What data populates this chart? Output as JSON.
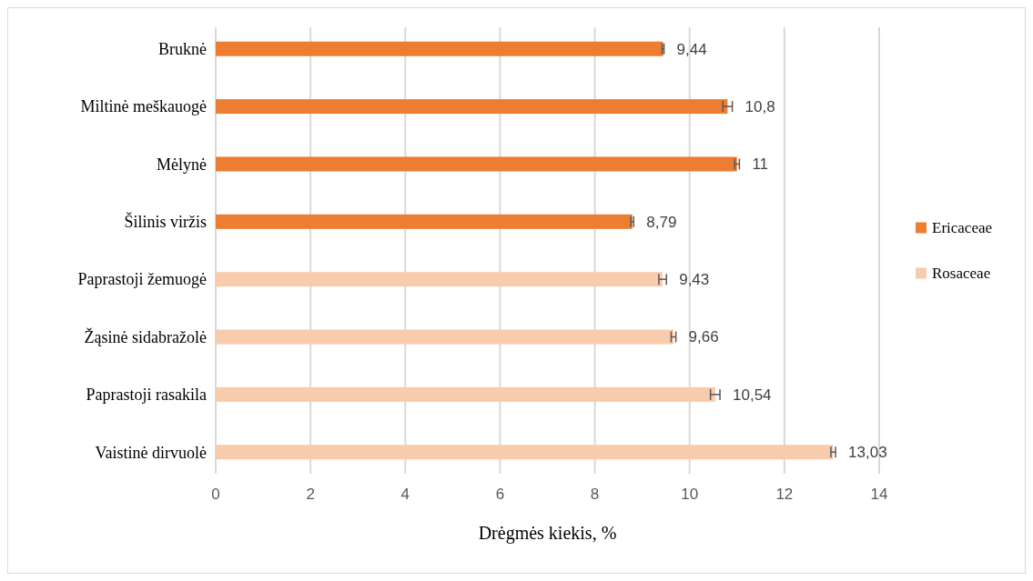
{
  "chart_data": {
    "type": "bar",
    "orientation": "horizontal",
    "xlabel": "Drėgmės kiekis, %",
    "categories": [
      "Bruknė",
      "Miltinė meškauogė",
      "Mėlynė",
      "Šilinis viržis",
      "Paprastoji žemuogė",
      "Žąsinė sidabražolė",
      "Paprastoji rasakila",
      "Vaistinė dirvuolė"
    ],
    "series": [
      {
        "name": "Ericaceae",
        "color": "#ed7d31",
        "values": [
          9.44,
          10.8,
          11,
          8.79,
          null,
          null,
          null,
          null
        ],
        "errors": [
          0.02,
          0.1,
          0.05,
          0.03,
          null,
          null,
          null,
          null
        ],
        "value_labels": [
          "9,44",
          "10,8",
          "11",
          "8,79",
          null,
          null,
          null,
          null
        ]
      },
      {
        "name": "Rosaceae",
        "color": "#f8cbad",
        "values": [
          null,
          null,
          null,
          null,
          9.43,
          9.66,
          10.54,
          13.03
        ],
        "errors": [
          null,
          null,
          null,
          null,
          0.08,
          0.05,
          0.1,
          0.05
        ],
        "value_labels": [
          null,
          null,
          null,
          null,
          "9,43",
          "9,66",
          "10,54",
          "13,03"
        ]
      }
    ],
    "xlim": [
      0,
      14
    ],
    "xticks": [
      0,
      2,
      4,
      6,
      8,
      10,
      12,
      14
    ],
    "grid": "x",
    "legend": "right"
  }
}
